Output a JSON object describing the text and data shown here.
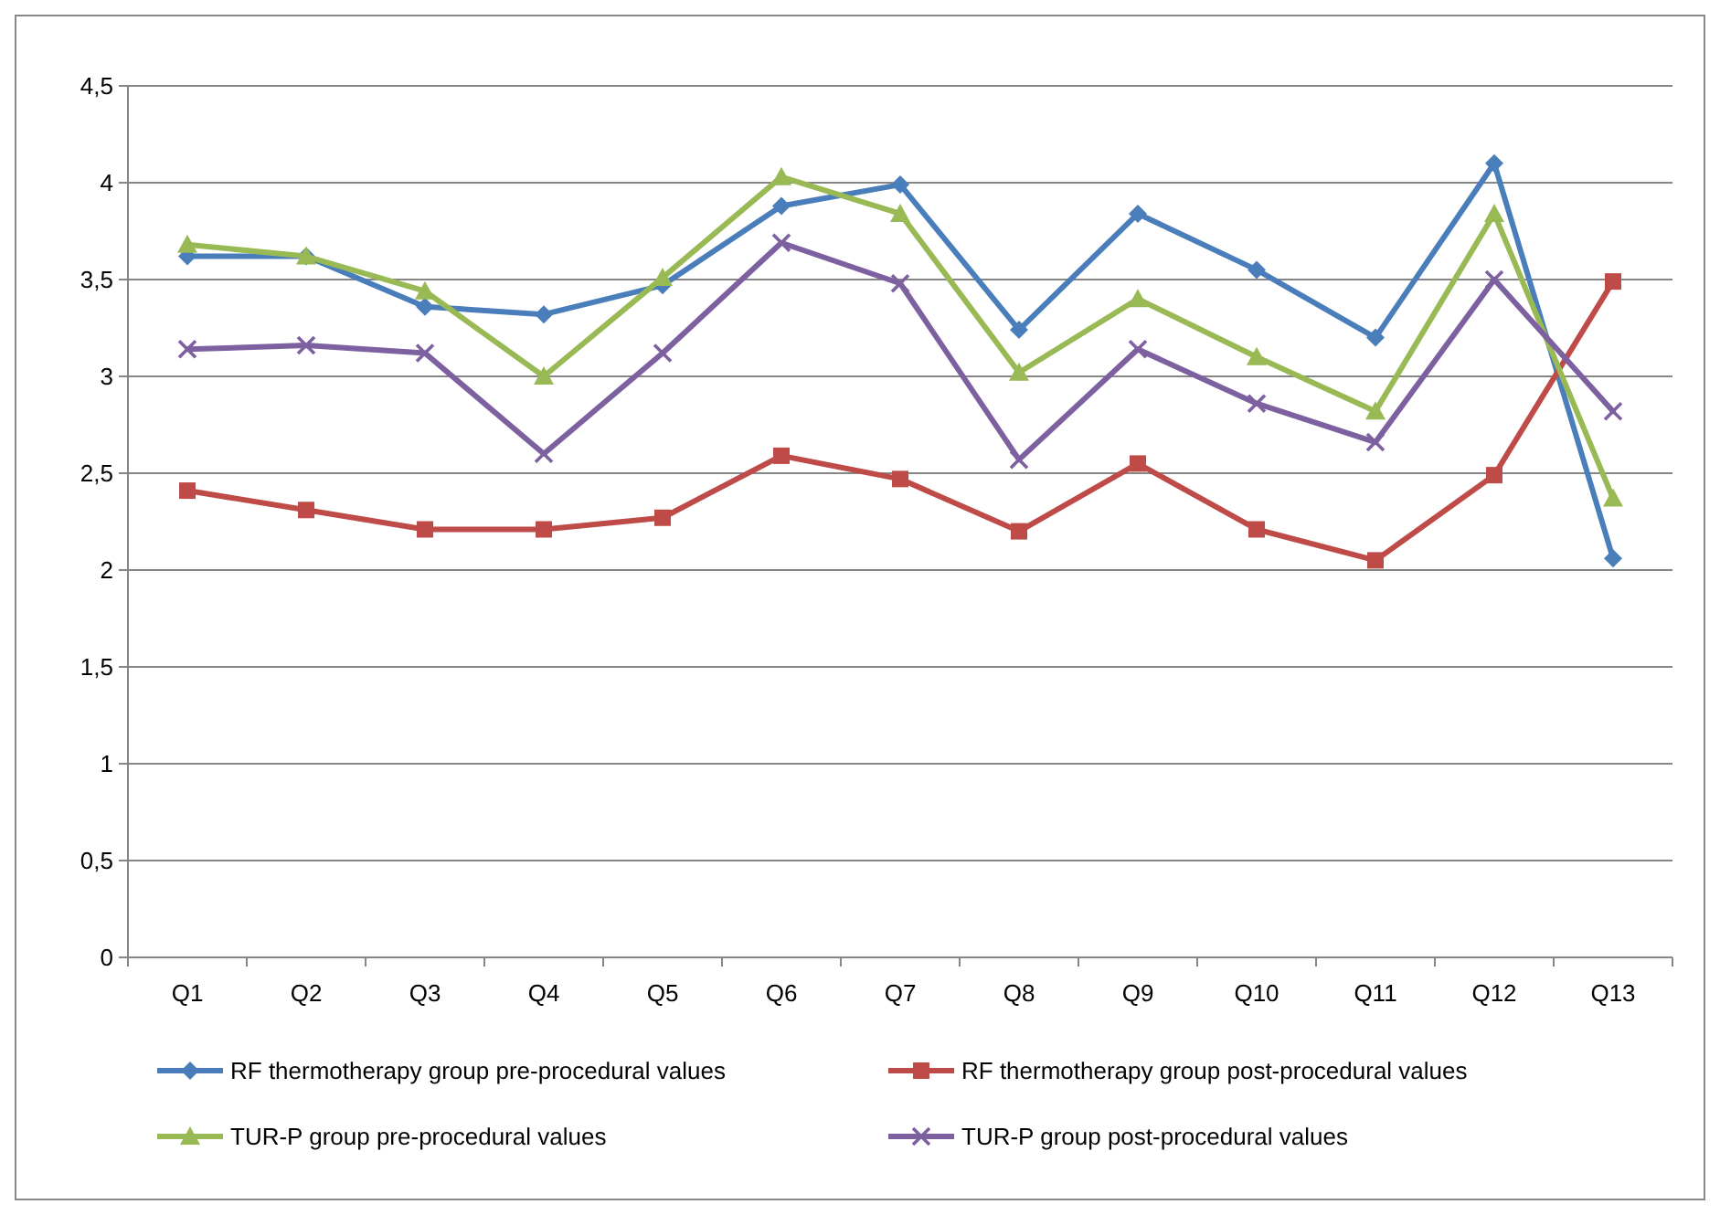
{
  "chart_data": {
    "type": "line",
    "categories": [
      "Q1",
      "Q2",
      "Q3",
      "Q4",
      "Q5",
      "Q6",
      "Q7",
      "Q8",
      "Q9",
      "Q10",
      "Q11",
      "Q12",
      "Q13"
    ],
    "ylim": [
      0,
      4.5
    ],
    "yticks": [
      {
        "value": 0,
        "label": "0"
      },
      {
        "value": 0.5,
        "label": "0,5"
      },
      {
        "value": 1,
        "label": "1"
      },
      {
        "value": 1.5,
        "label": "1,5"
      },
      {
        "value": 2,
        "label": "2"
      },
      {
        "value": 2.5,
        "label": "2,5"
      },
      {
        "value": 3,
        "label": "3"
      },
      {
        "value": 3.5,
        "label": "3,5"
      },
      {
        "value": 4,
        "label": "4"
      },
      {
        "value": 4.5,
        "label": "4,5"
      }
    ],
    "grid": "y",
    "legend": "bottom",
    "series": [
      {
        "name": "RF thermotherapy group pre-procedural  values",
        "color": "#4a7ebb",
        "marker": "diamond",
        "values": [
          3.62,
          3.62,
          3.36,
          3.32,
          3.47,
          3.88,
          3.99,
          3.24,
          3.84,
          3.55,
          3.2,
          4.1,
          2.06
        ]
      },
      {
        "name": "RF thermotherapy group post-procedural  values",
        "color": "#be4b48",
        "marker": "square",
        "values": [
          2.41,
          2.31,
          2.21,
          2.21,
          2.27,
          2.59,
          2.47,
          2.2,
          2.55,
          2.21,
          2.05,
          2.49,
          3.49
        ]
      },
      {
        "name": "TUR-P group pre-procedural values",
        "color": "#98b954",
        "marker": "triangle",
        "values": [
          3.68,
          3.62,
          3.44,
          3.0,
          3.51,
          4.03,
          3.84,
          3.02,
          3.4,
          3.1,
          2.82,
          3.84,
          2.37
        ]
      },
      {
        "name": "TUR-P group post-procedural values",
        "color": "#7d60a0",
        "marker": "cross",
        "values": [
          3.14,
          3.16,
          3.12,
          2.6,
          3.12,
          3.69,
          3.48,
          2.57,
          3.14,
          2.86,
          2.66,
          3.5,
          2.82
        ]
      }
    ]
  }
}
